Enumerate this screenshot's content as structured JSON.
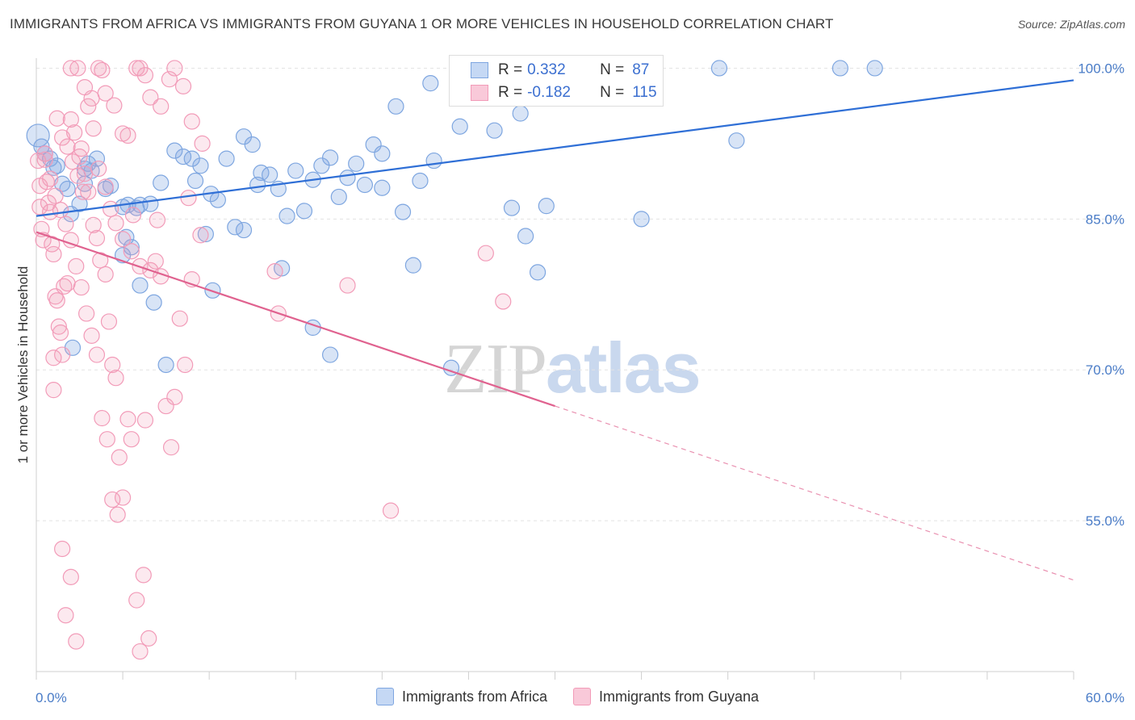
{
  "header": {
    "title": "IMMIGRANTS FROM AFRICA VS IMMIGRANTS FROM GUYANA 1 OR MORE VEHICLES IN HOUSEHOLD CORRELATION CHART",
    "source": "Source: ZipAtlas.com"
  },
  "watermark": {
    "zip": "ZIP",
    "atlas": "atlas"
  },
  "legend": {
    "rows": [
      {
        "r_label": "R =",
        "r_value": "0.332",
        "n_label": "N =",
        "n_value": "87"
      },
      {
        "r_label": "R =",
        "r_value": "-0.182",
        "n_label": "N =",
        "n_value": "115"
      }
    ]
  },
  "bottom_legend": {
    "items": [
      {
        "label": "Immigrants from Africa"
      },
      {
        "label": "Immigrants from Guyana"
      }
    ]
  },
  "colors": {
    "africa": "#7ea6e0",
    "africa_line": "#2f6fd6",
    "guyana": "#f29bb8",
    "guyana_line": "#e0628f",
    "tick": "#4a7cc7"
  },
  "chart_data": {
    "type": "scatter",
    "title": "IMMIGRANTS FROM AFRICA VS IMMIGRANTS FROM GUYANA 1 OR MORE VEHICLES IN HOUSEHOLD CORRELATION CHART",
    "xlabel": "",
    "ylabel": "1 or more Vehicles in Household",
    "xlim": [
      0,
      60
    ],
    "ylim": [
      40,
      101
    ],
    "x_tick_labels": [
      "0.0%",
      "60.0%"
    ],
    "y_ticks": [
      {
        "value": 100,
        "label": "100.0%"
      },
      {
        "value": 85,
        "label": "85.0%"
      },
      {
        "value": 70,
        "label": "70.0%"
      },
      {
        "value": 55,
        "label": "55.0%"
      }
    ],
    "series": [
      {
        "name": "Immigrants from Africa",
        "trend": {
          "x": [
            0,
            60
          ],
          "y": [
            85.3,
            98.8
          ],
          "dashed_from": null
        },
        "points": [
          [
            0.1,
            93.3
          ],
          [
            0.3,
            92.2
          ],
          [
            0.5,
            91.5
          ],
          [
            0.8,
            91.0
          ],
          [
            1.0,
            90.1
          ],
          [
            1.2,
            90.3
          ],
          [
            1.5,
            88.5
          ],
          [
            1.8,
            88.0
          ],
          [
            2.0,
            85.5
          ],
          [
            2.5,
            86.5
          ],
          [
            2.8,
            90.0
          ],
          [
            3.0,
            90.5
          ],
          [
            3.2,
            89.8
          ],
          [
            3.5,
            91.0
          ],
          [
            4.0,
            88.0
          ],
          [
            4.3,
            88.3
          ],
          [
            5.0,
            86.2
          ],
          [
            5.3,
            86.4
          ],
          [
            5.8,
            86.1
          ],
          [
            6.0,
            86.4
          ],
          [
            6.6,
            86.5
          ],
          [
            7.2,
            88.6
          ],
          [
            8.0,
            91.8
          ],
          [
            8.5,
            91.2
          ],
          [
            9.0,
            91.0
          ],
          [
            9.5,
            90.3
          ],
          [
            10.1,
            87.5
          ],
          [
            10.5,
            86.9
          ],
          [
            11.0,
            91.0
          ],
          [
            11.5,
            84.2
          ],
          [
            12.0,
            83.9
          ],
          [
            12.5,
            92.4
          ],
          [
            12.0,
            93.2
          ],
          [
            13.0,
            89.6
          ],
          [
            13.5,
            89.4
          ],
          [
            14.0,
            88.0
          ],
          [
            14.5,
            85.3
          ],
          [
            15.0,
            89.8
          ],
          [
            15.5,
            85.8
          ],
          [
            16.0,
            88.9
          ],
          [
            16.5,
            90.3
          ],
          [
            17.0,
            91.1
          ],
          [
            17.5,
            87.2
          ],
          [
            18.0,
            89.1
          ],
          [
            18.5,
            90.5
          ],
          [
            19.0,
            88.4
          ],
          [
            19.5,
            92.4
          ],
          [
            20.0,
            88.1
          ],
          [
            20.8,
            96.2
          ],
          [
            21.2,
            85.7
          ],
          [
            21.8,
            80.4
          ],
          [
            22.2,
            88.8
          ],
          [
            22.8,
            98.5
          ],
          [
            23.0,
            90.8
          ],
          [
            24.5,
            94.2
          ],
          [
            25.0,
            100.0
          ],
          [
            26.2,
            100.0
          ],
          [
            26.5,
            93.8
          ],
          [
            27.5,
            86.1
          ],
          [
            28.0,
            95.5
          ],
          [
            28.3,
            83.3
          ],
          [
            29.0,
            79.7
          ],
          [
            29.5,
            86.3
          ],
          [
            31.0,
            100.0
          ],
          [
            33.7,
            100.0
          ],
          [
            35.0,
            85.0
          ],
          [
            39.5,
            100.0
          ],
          [
            40.5,
            92.8
          ],
          [
            46.5,
            100.0
          ],
          [
            48.5,
            100.0
          ],
          [
            2.1,
            72.2
          ],
          [
            5.2,
            83.2
          ],
          [
            5.5,
            82.2
          ],
          [
            6.0,
            78.4
          ],
          [
            6.8,
            76.7
          ],
          [
            7.5,
            70.5
          ],
          [
            9.8,
            83.5
          ],
          [
            10.2,
            77.9
          ],
          [
            14.2,
            80.1
          ],
          [
            16.0,
            74.2
          ],
          [
            17.0,
            71.5
          ],
          [
            24.0,
            70.2
          ],
          [
            5.0,
            81.4
          ],
          [
            2.8,
            88.5
          ],
          [
            9.2,
            88.8
          ],
          [
            12.8,
            88.4
          ],
          [
            20.0,
            91.5
          ]
        ]
      },
      {
        "name": "Immigrants from Guyana",
        "trend": {
          "x": [
            0,
            60
          ],
          "y": [
            83.7,
            49.1
          ],
          "dashed_from": 30
        },
        "points": [
          [
            0.1,
            90.8
          ],
          [
            0.2,
            88.3
          ],
          [
            0.2,
            86.2
          ],
          [
            0.3,
            84.0
          ],
          [
            0.4,
            82.9
          ],
          [
            0.5,
            91.5
          ],
          [
            0.6,
            88.7
          ],
          [
            0.7,
            86.6
          ],
          [
            0.8,
            85.7
          ],
          [
            0.9,
            82.5
          ],
          [
            1.0,
            81.5
          ],
          [
            1.1,
            77.3
          ],
          [
            1.2,
            76.9
          ],
          [
            1.3,
            74.3
          ],
          [
            1.4,
            73.7
          ],
          [
            1.5,
            71.5
          ],
          [
            1.0,
            71.2
          ],
          [
            1.0,
            68.0
          ],
          [
            1.5,
            52.2
          ],
          [
            1.7,
            45.6
          ],
          [
            2.0,
            49.4
          ],
          [
            2.3,
            43.0
          ],
          [
            1.6,
            78.3
          ],
          [
            1.8,
            78.6
          ],
          [
            2.0,
            94.9
          ],
          [
            2.2,
            93.6
          ],
          [
            2.5,
            91.2
          ],
          [
            2.8,
            89.5
          ],
          [
            3.0,
            87.7
          ],
          [
            3.3,
            84.4
          ],
          [
            3.5,
            83.1
          ],
          [
            3.7,
            80.9
          ],
          [
            4.0,
            79.5
          ],
          [
            4.2,
            74.8
          ],
          [
            4.4,
            70.5
          ],
          [
            4.6,
            69.2
          ],
          [
            4.8,
            61.3
          ],
          [
            5.0,
            57.3
          ],
          [
            5.3,
            65.1
          ],
          [
            5.5,
            63.1
          ],
          [
            5.8,
            47.1
          ],
          [
            6.0,
            42.0
          ],
          [
            6.3,
            65.0
          ],
          [
            6.6,
            79.9
          ],
          [
            6.9,
            80.8
          ],
          [
            7.2,
            79.3
          ],
          [
            7.5,
            66.4
          ],
          [
            7.8,
            62.3
          ],
          [
            8.0,
            67.3
          ],
          [
            8.3,
            75.1
          ],
          [
            8.6,
            70.5
          ],
          [
            9.0,
            79.0
          ],
          [
            6.2,
            49.6
          ],
          [
            6.5,
            43.3
          ],
          [
            3.6,
            100.0
          ],
          [
            3.8,
            99.8
          ],
          [
            4.0,
            97.5
          ],
          [
            4.5,
            96.3
          ],
          [
            5.0,
            93.5
          ],
          [
            5.3,
            93.3
          ],
          [
            5.8,
            100.0
          ],
          [
            6.0,
            100.0
          ],
          [
            6.3,
            99.3
          ],
          [
            6.6,
            97.1
          ],
          [
            7.2,
            96.2
          ],
          [
            7.7,
            98.9
          ],
          [
            8.0,
            100.0
          ],
          [
            8.5,
            98.2
          ],
          [
            9.0,
            94.7
          ],
          [
            9.6,
            92.5
          ],
          [
            2.6,
            92.0
          ],
          [
            3.0,
            96.2
          ],
          [
            3.3,
            94.0
          ],
          [
            3.6,
            90.0
          ],
          [
            4.0,
            88.2
          ],
          [
            4.3,
            86.0
          ],
          [
            4.6,
            84.6
          ],
          [
            5.0,
            83.0
          ],
          [
            5.5,
            81.8
          ],
          [
            6.0,
            80.3
          ],
          [
            2.0,
            100.0
          ],
          [
            2.4,
            100.0
          ],
          [
            2.8,
            98.1
          ],
          [
            3.2,
            97.0
          ],
          [
            1.2,
            95.0
          ],
          [
            1.5,
            93.1
          ],
          [
            1.8,
            92.2
          ],
          [
            2.1,
            90.7
          ],
          [
            2.4,
            89.3
          ],
          [
            2.7,
            87.7
          ],
          [
            0.5,
            90.9
          ],
          [
            0.8,
            89.0
          ],
          [
            1.1,
            87.3
          ],
          [
            1.4,
            85.9
          ],
          [
            1.7,
            84.5
          ],
          [
            2.0,
            82.9
          ],
          [
            2.3,
            80.3
          ],
          [
            2.6,
            78.2
          ],
          [
            2.9,
            75.6
          ],
          [
            3.2,
            73.4
          ],
          [
            3.5,
            71.5
          ],
          [
            3.8,
            65.2
          ],
          [
            4.1,
            63.1
          ],
          [
            4.4,
            57.1
          ],
          [
            4.7,
            55.6
          ],
          [
            13.8,
            79.8
          ],
          [
            14.0,
            75.6
          ],
          [
            18.0,
            78.4
          ],
          [
            20.5,
            56.0
          ],
          [
            26.0,
            81.6
          ],
          [
            27.0,
            76.8
          ],
          [
            7.0,
            84.9
          ],
          [
            5.6,
            85.4
          ],
          [
            8.8,
            87.1
          ],
          [
            9.5,
            83.4
          ]
        ]
      }
    ]
  }
}
